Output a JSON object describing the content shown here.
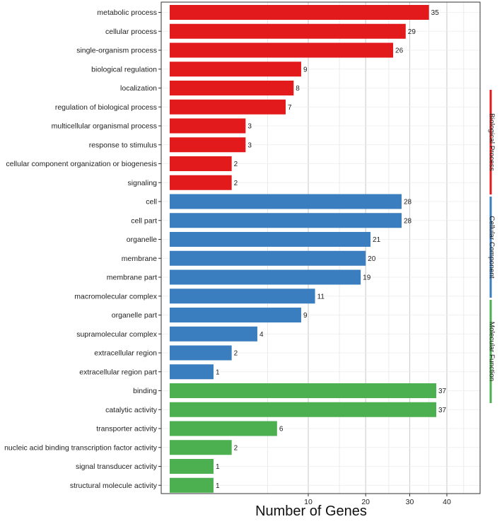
{
  "chart_data": {
    "type": "bar",
    "orientation": "horizontal",
    "xlabel": "Number of Genes",
    "x_scale": "sqrt",
    "xlim": [
      0,
      47
    ],
    "x_ticks": [
      10,
      20,
      30,
      40
    ],
    "x_tick_labels": [
      "10",
      "20",
      "30",
      "40"
    ],
    "grid": true,
    "series": [
      {
        "name": "Biological Process",
        "color": "#e31a1c",
        "categories": [
          "metabolic process",
          "cellular process",
          "single-organism process",
          "biological regulation",
          "localization",
          "regulation of biological process",
          "multicellular organismal process",
          "response to stimulus",
          "cellular component organization or biogenesis",
          "signaling"
        ],
        "values": [
          35,
          29,
          26,
          9,
          8,
          7,
          3,
          3,
          2,
          2
        ]
      },
      {
        "name": "Cellular Component",
        "color": "#3a7ebf",
        "categories": [
          "cell",
          "cell part",
          "organelle",
          "membrane",
          "membrane part",
          "macromolecular complex",
          "organelle part",
          "supramolecular complex",
          "extracellular region",
          "extracellular region part"
        ],
        "values": [
          28,
          28,
          21,
          20,
          19,
          11,
          9,
          4,
          2,
          1
        ]
      },
      {
        "name": "Molecular Function",
        "color": "#4caf50",
        "categories": [
          "binding",
          "catalytic activity",
          "transporter activity",
          "nucleic acid binding transcription factor activity",
          "signal transducer activity",
          "structural molecule activity"
        ],
        "values": [
          37,
          37,
          6,
          2,
          1,
          1
        ]
      }
    ]
  }
}
